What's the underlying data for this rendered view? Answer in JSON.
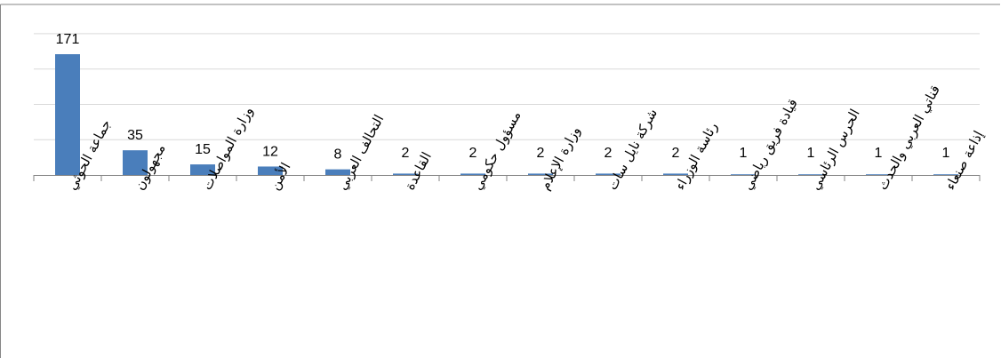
{
  "chart_data": {
    "type": "bar",
    "title": "",
    "xlabel": "",
    "ylabel": "",
    "categories": [
      "جماعة الحوثي",
      "مجهولون",
      "وزارة المواصلات",
      "الأمن",
      "التحالف العربي",
      "القاعدة",
      "مسؤول حكومي",
      "وزارة الإعلام",
      "شركة نايل سات",
      "رئاسة الوزراء",
      "قيادة فريق رياضي",
      "الحرس الرئاسي",
      "قناتي العربي والحدث",
      "إذاعة صنعاء"
    ],
    "values": [
      171,
      35,
      15,
      12,
      8,
      2,
      2,
      2,
      2,
      2,
      1,
      1,
      1,
      1
    ],
    "ylim": [
      0,
      200
    ],
    "grid": true,
    "legend": "none",
    "colors": {
      "bar": "#4a7ebb",
      "grid": "#d9d9d9",
      "axis": "#868686",
      "frame": "#868686"
    }
  }
}
